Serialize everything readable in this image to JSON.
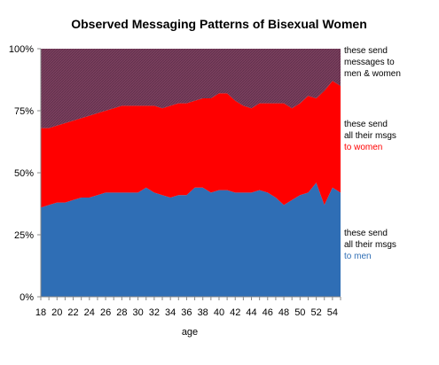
{
  "chart_data": {
    "type": "area",
    "stacked_percent": true,
    "title": "Observed Messaging Patterns of Bisexual Women",
    "xlabel": "age",
    "ylabel": "",
    "xlim": [
      18,
      55
    ],
    "ylim": [
      0,
      100
    ],
    "x_tick_labels": [
      "18",
      "20",
      "22",
      "24",
      "26",
      "28",
      "30",
      "32",
      "34",
      "36",
      "38",
      "40",
      "42",
      "44",
      "46",
      "48",
      "50",
      "52",
      "54"
    ],
    "y_tick_labels": [
      "0%",
      "25%",
      "50%",
      "75%",
      "100%"
    ],
    "grid": false,
    "x": [
      18,
      19,
      20,
      21,
      22,
      23,
      24,
      25,
      26,
      27,
      28,
      29,
      30,
      31,
      32,
      33,
      34,
      35,
      36,
      37,
      38,
      39,
      40,
      41,
      42,
      43,
      44,
      45,
      46,
      47,
      48,
      49,
      50,
      51,
      52,
      53,
      54,
      55
    ],
    "series": [
      {
        "key": "to_men",
        "color": "#2f6eb5",
        "label_lines": [
          {
            "text": "these send",
            "color": "#000000"
          },
          {
            "text": "all their msgs",
            "color": "#000000"
          },
          {
            "text": "to men",
            "color": "#2f6eb5"
          }
        ],
        "values": [
          36,
          37,
          38,
          38,
          39,
          40,
          40,
          41,
          42,
          42,
          42,
          42,
          42,
          44,
          42,
          41,
          40,
          41,
          41,
          44,
          44,
          42,
          43,
          43,
          42,
          42,
          42,
          43,
          42,
          40,
          37,
          39,
          41,
          42,
          46,
          37,
          44,
          42
        ]
      },
      {
        "key": "to_women",
        "color": "#ff0000",
        "label_lines": [
          {
            "text": "these send",
            "color": "#000000"
          },
          {
            "text": "all their msgs",
            "color": "#000000"
          },
          {
            "text": "to women",
            "color": "#ff0000"
          }
        ],
        "values": [
          32,
          31,
          31,
          32,
          32,
          32,
          33,
          33,
          33,
          34,
          35,
          35,
          35,
          33,
          35,
          35,
          37,
          37,
          37,
          35,
          36,
          38,
          39,
          39,
          37,
          35,
          34,
          35,
          36,
          38,
          41,
          37,
          37,
          39,
          34,
          46,
          43,
          43
        ]
      },
      {
        "key": "to_both",
        "color": "#7a3f5e",
        "label_lines": [
          {
            "text": "these send",
            "color": "#000000"
          },
          {
            "text": "messages to",
            "color": "#000000"
          },
          {
            "text": "men & women",
            "color": "#000000"
          }
        ],
        "values": [
          32,
          32,
          31,
          30,
          29,
          28,
          27,
          26,
          25,
          24,
          23,
          23,
          23,
          23,
          23,
          24,
          23,
          22,
          22,
          21,
          20,
          20,
          18,
          18,
          21,
          23,
          24,
          22,
          22,
          22,
          22,
          24,
          22,
          19,
          20,
          17,
          13,
          15
        ]
      }
    ]
  }
}
